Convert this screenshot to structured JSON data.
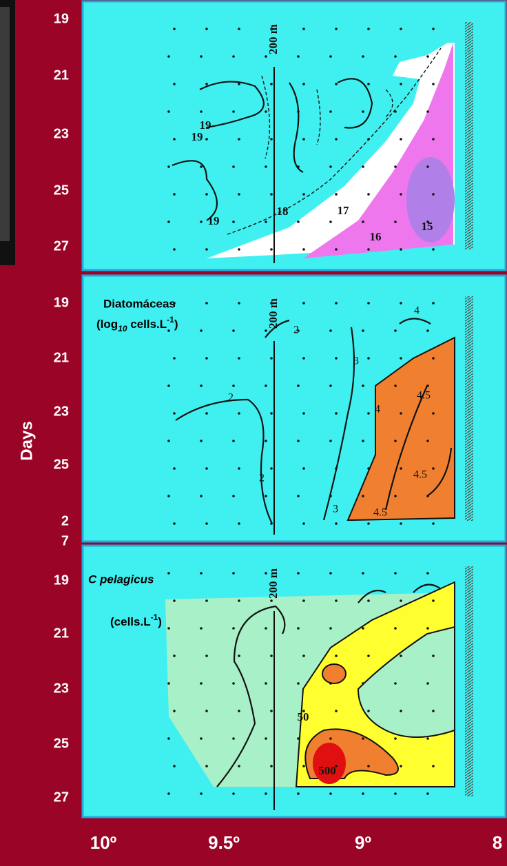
{
  "y_axis": {
    "label": "Days",
    "panels": [
      [
        "19",
        "21",
        "23",
        "25",
        "27"
      ],
      [
        "19",
        "21",
        "23",
        "25",
        "2",
        "7"
      ],
      [
        "19",
        "21",
        "23",
        "25",
        "27"
      ]
    ]
  },
  "x_axis": {
    "labels": [
      "10º",
      "9.5º",
      "9º",
      "8"
    ]
  },
  "panels": [
    {
      "isobath": "200 m",
      "contour_labels": [
        "19",
        "19",
        "19",
        "18",
        "17",
        "16",
        "15"
      ]
    },
    {
      "isobath": "200 m",
      "title": "Diatomáceas",
      "unit": [
        "(log",
        "10",
        " cells.L",
        "-1",
        ")"
      ],
      "contour_labels": [
        "2",
        "2",
        "2",
        "3",
        "3",
        "4",
        "4",
        "4.5",
        "4.5",
        "4.5"
      ]
    },
    {
      "isobath": "200 m",
      "title": "C pelagicus",
      "unit": [
        "(cells.L",
        "-1",
        ")"
      ],
      "contour_labels": [
        "50",
        "500"
      ]
    }
  ]
}
